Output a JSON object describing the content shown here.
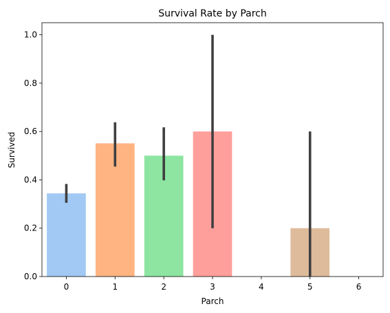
{
  "chart_data": {
    "type": "bar",
    "title": "Survival Rate by Parch",
    "xlabel": "Parch",
    "ylabel": "Survived",
    "categories": [
      "0",
      "1",
      "2",
      "3",
      "4",
      "5",
      "6"
    ],
    "values": [
      0.344,
      0.551,
      0.5,
      0.6,
      0.0,
      0.2,
      0.0
    ],
    "error_low": [
      0.305,
      0.455,
      0.398,
      0.2,
      null,
      0.0,
      null
    ],
    "error_high": [
      0.383,
      0.638,
      0.617,
      1.0,
      null,
      0.6,
      null
    ],
    "colors": [
      "#a1c9f4",
      "#ffb482",
      "#8de5a1",
      "#ff9f9b",
      "#d0bbff",
      "#debb9b",
      "#fab0e4"
    ],
    "ylim": [
      0,
      1.05
    ],
    "yticks": [
      0.0,
      0.2,
      0.4,
      0.6,
      0.8,
      1.0
    ],
    "ytick_labels": [
      "0.0",
      "0.2",
      "0.4",
      "0.6",
      "0.8",
      "1.0"
    ],
    "grid": false,
    "legend": "none"
  }
}
